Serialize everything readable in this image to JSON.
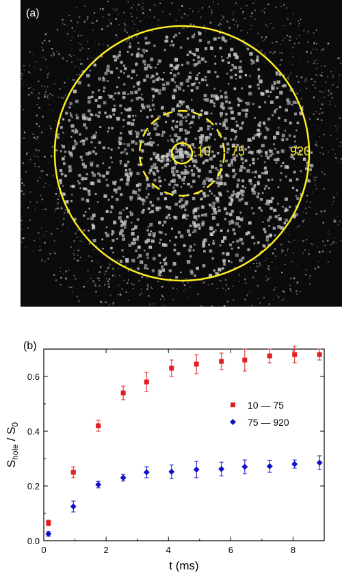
{
  "panel_a": {
    "label": "(a)",
    "ring_labels": [
      "10",
      "75",
      "920"
    ],
    "colors": {
      "background": "#0b0b0b",
      "particles": "#c8c8c8",
      "ring": "#ffee22"
    }
  },
  "chart_data": {
    "type": "scatter",
    "panel_label": "(b)",
    "xlabel": "t (ms)",
    "ylabel_main": "S",
    "ylabel_sub1": "hole",
    "ylabel_mid": " / S",
    "ylabel_sub2": "0",
    "xlim": [
      0,
      9
    ],
    "ylim": [
      0,
      0.7
    ],
    "xticks": [
      0,
      2,
      4,
      6,
      8
    ],
    "yticks": [
      0.0,
      0.2,
      0.4,
      0.6
    ],
    "ytick_labels": [
      "0.0",
      "0.2",
      "0.4",
      "0.6"
    ],
    "grid": false,
    "legend_position": "right",
    "series": [
      {
        "name": "10 — 75",
        "marker": "square",
        "color": "#e02020",
        "x": [
          0.15,
          0.95,
          1.75,
          2.55,
          3.3,
          4.1,
          4.9,
          5.7,
          6.45,
          7.25,
          8.05,
          8.85
        ],
        "y": [
          0.065,
          0.25,
          0.42,
          0.54,
          0.58,
          0.63,
          0.645,
          0.655,
          0.66,
          0.675,
          0.68,
          0.68
        ],
        "err": [
          0.01,
          0.02,
          0.02,
          0.025,
          0.035,
          0.03,
          0.035,
          0.03,
          0.04,
          0.025,
          0.03,
          0.02
        ]
      },
      {
        "name": "75 — 920",
        "marker": "diamond",
        "color": "#1010c8",
        "x": [
          0.15,
          0.95,
          1.75,
          2.55,
          3.3,
          4.1,
          4.9,
          5.7,
          6.45,
          7.25,
          8.05,
          8.85
        ],
        "y": [
          0.025,
          0.125,
          0.205,
          0.23,
          0.25,
          0.252,
          0.26,
          0.262,
          0.27,
          0.272,
          0.28,
          0.285
        ],
        "err": [
          0.008,
          0.02,
          0.012,
          0.012,
          0.02,
          0.025,
          0.03,
          0.025,
          0.025,
          0.022,
          0.015,
          0.025
        ]
      }
    ]
  }
}
